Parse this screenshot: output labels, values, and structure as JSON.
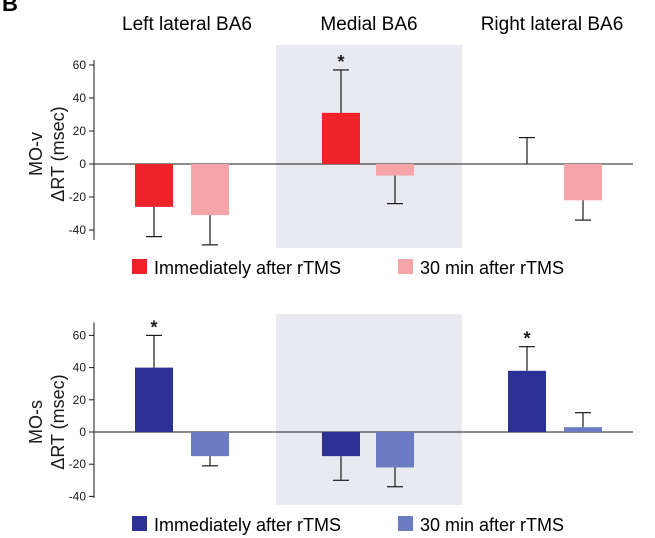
{
  "figure": {
    "panel_letter": "B",
    "colors": {
      "top_immediate": "#ee2229",
      "top_30min": "#f5a5a7",
      "bottom_immediate": "#2b3195",
      "bottom_30min": "#6b7cc3",
      "shade": "#e9eaef",
      "ink": "#1a1a1a"
    }
  },
  "chart_data": [
    {
      "type": "bar",
      "panel": "top",
      "row_label": "MO-v",
      "ylabel": "ΔRT (msec)",
      "categories": [
        "Left lateral BA6",
        "Medial BA6",
        "Right lateral BA6"
      ],
      "shaded_category": "Medial BA6",
      "ylim": [
        -50,
        65
      ],
      "yticks": [
        -40,
        -20,
        0,
        20,
        40,
        60
      ],
      "series": [
        {
          "name": "Immediately after rTMS",
          "values": [
            -26,
            31,
            0
          ],
          "error": [
            18,
            26,
            16
          ],
          "significant": [
            false,
            true,
            false
          ]
        },
        {
          "name": "30 min after rTMS",
          "values": [
            -31,
            -7,
            -22
          ],
          "error": [
            18,
            17,
            12
          ],
          "significant": [
            false,
            false,
            false
          ]
        }
      ],
      "significance_marker": "*",
      "legend_position": "bottom"
    },
    {
      "type": "bar",
      "panel": "bottom",
      "row_label": "MO-s",
      "ylabel": "ΔRT (msec)",
      "categories": [
        "Left lateral BA6",
        "Medial BA6",
        "Right lateral BA6"
      ],
      "shaded_category": "Medial BA6",
      "ylim": [
        -45,
        70
      ],
      "yticks": [
        -40,
        -20,
        0,
        20,
        40,
        60
      ],
      "series": [
        {
          "name": "Immediately after rTMS",
          "values": [
            40,
            -15,
            38
          ],
          "error": [
            20,
            15,
            15
          ],
          "significant": [
            true,
            false,
            true
          ]
        },
        {
          "name": "30 min after rTMS",
          "values": [
            -15,
            -22,
            3
          ],
          "error": [
            6,
            12,
            9
          ],
          "significant": [
            false,
            false,
            false
          ]
        }
      ],
      "significance_marker": "*",
      "legend_position": "bottom"
    }
  ]
}
